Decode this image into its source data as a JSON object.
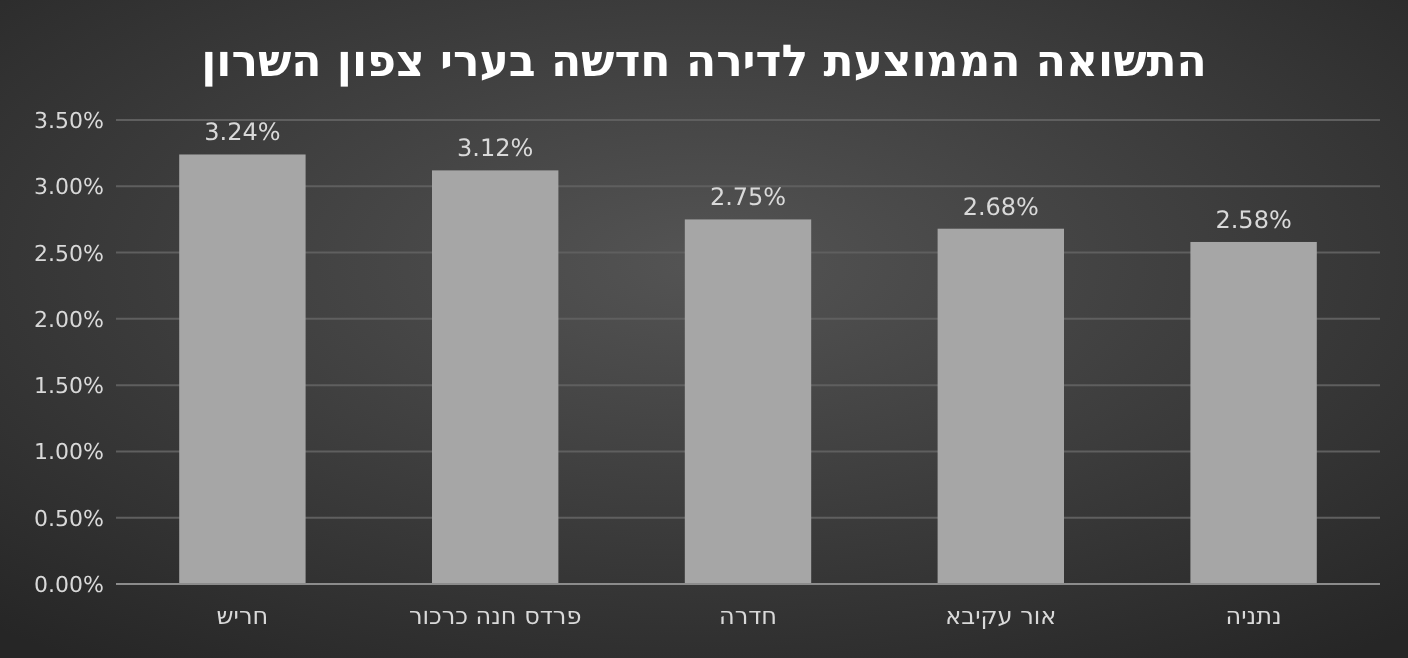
{
  "chart_data": {
    "type": "bar",
    "title": "התשואה הממוצעת לדירה חדשה בערי צפון השרון",
    "categories": [
      "חריש",
      "פרדס חנה כרכור",
      "חדרה",
      "אור עקיבא",
      "נתניה"
    ],
    "values": [
      3.24,
      3.12,
      2.75,
      2.68,
      2.58
    ],
    "value_labels": [
      "3.24%",
      "3.12%",
      "2.75%",
      "2.68%",
      "2.58%"
    ],
    "color": "#a6a6a6",
    "ylim": [
      0,
      3.5
    ],
    "yticks": [
      {
        "value": 0,
        "label": "0.00%"
      },
      {
        "value": 0.5,
        "label": "0.50%"
      },
      {
        "value": 1,
        "label": "1.00%"
      },
      {
        "value": 1.5,
        "label": "1.50%"
      },
      {
        "value": 2,
        "label": "2.00%"
      },
      {
        "value": 2.5,
        "label": "2.50%"
      },
      {
        "value": 3,
        "label": "3.00%"
      },
      {
        "value": 3.5,
        "label": "3.50%"
      }
    ],
    "grid": "y"
  }
}
